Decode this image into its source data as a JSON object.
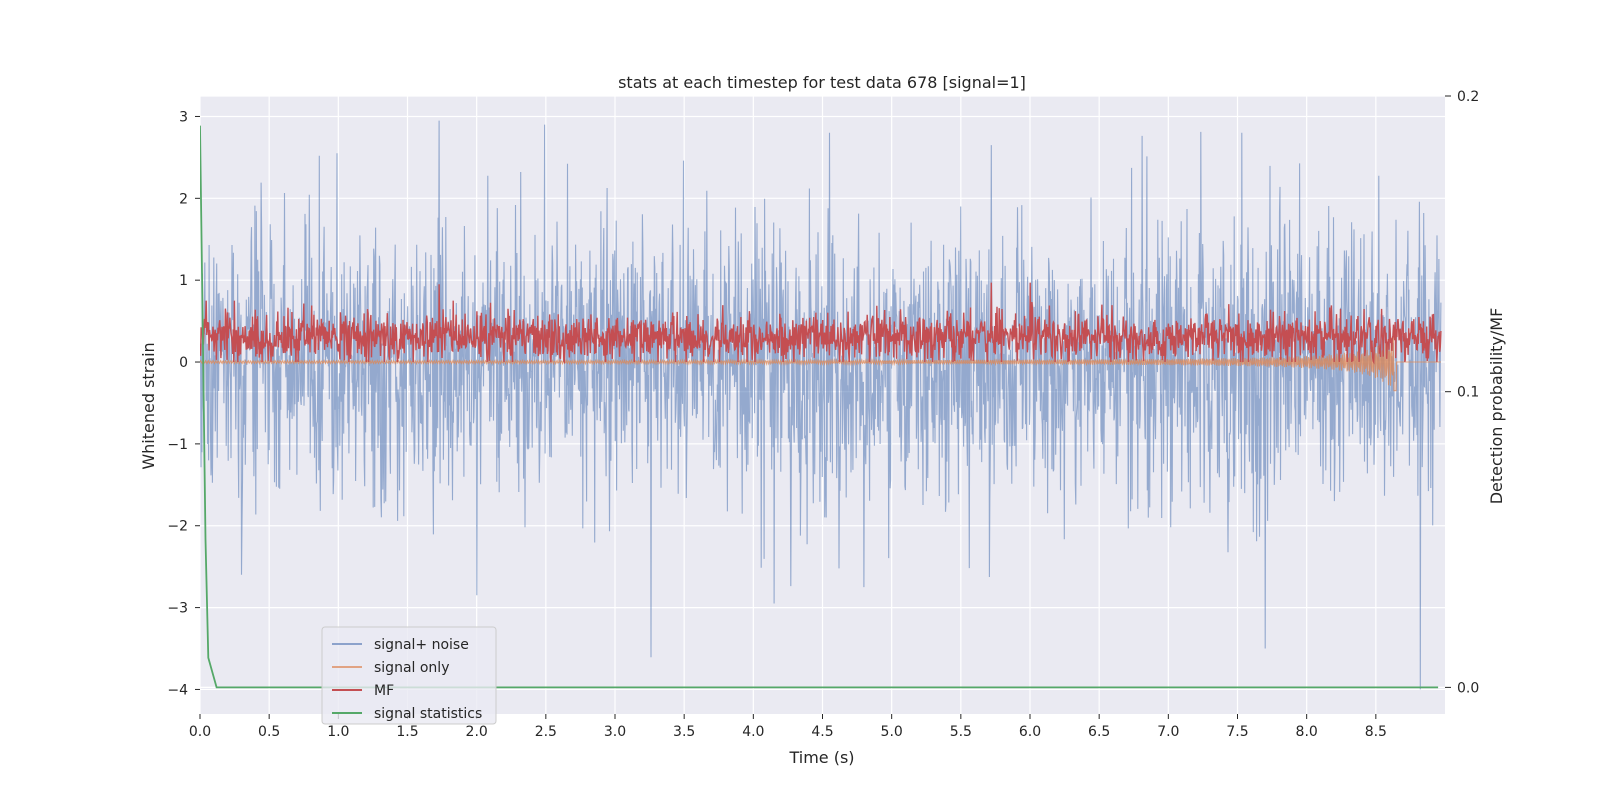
{
  "chart_data": {
    "type": "line",
    "title": "stats at each timestep for test data 678 [signal=1]",
    "xlabel": "Time (s)",
    "ylabel": "Whitened strain",
    "ylabel_right": "Detection probability/MF",
    "xlim": [
      0.0,
      9.0
    ],
    "ylim": [
      -4.3,
      3.25
    ],
    "ylim_right": [
      -0.009,
      0.2
    ],
    "x_ticks": [
      0.0,
      0.5,
      1.0,
      1.5,
      2.0,
      2.5,
      3.0,
      3.5,
      4.0,
      4.5,
      5.0,
      5.5,
      6.0,
      6.5,
      7.0,
      7.5,
      8.0,
      8.5
    ],
    "x_tick_labels": [
      "0.0",
      "0.5",
      "1.0",
      "1.5",
      "2.0",
      "2.5",
      "3.0",
      "3.5",
      "4.0",
      "4.5",
      "5.0",
      "5.5",
      "6.0",
      "6.5",
      "7.0",
      "7.5",
      "8.0",
      "8.5"
    ],
    "y_ticks": [
      -4,
      -3,
      -2,
      -1,
      0,
      1,
      2,
      3
    ],
    "y_tick_labels": [
      "−4",
      "−3",
      "−2",
      "−1",
      "0",
      "1",
      "2",
      "3"
    ],
    "y_ticks_right": [
      0.0,
      0.1,
      0.2
    ],
    "y_tick_labels_right": [
      "0.0",
      "0.1",
      "0.2"
    ],
    "grid": true,
    "legend_position": "lower-left",
    "series": [
      {
        "name": "signal+ noise",
        "color": "#4c72b0",
        "axis": "left",
        "kind": "noise",
        "center": 0.0,
        "amplitude_std": 0.85,
        "y_min": -4.0,
        "y_max": 2.95,
        "peaks": [
          [
            1.73,
            2.95
          ],
          [
            2.49,
            2.9
          ],
          [
            0.99,
            2.55
          ],
          [
            4.55,
            2.8
          ],
          [
            7.53,
            2.8
          ],
          [
            5.72,
            2.65
          ],
          [
            2.0,
            -2.85
          ],
          [
            4.15,
            -2.95
          ],
          [
            7.7,
            -3.5
          ],
          [
            8.82,
            -4.0
          ],
          [
            0.3,
            -2.6
          ],
          [
            4.8,
            -2.75
          ]
        ]
      },
      {
        "name": "signal only",
        "color": "#dd8452",
        "axis": "left",
        "kind": "chirp",
        "chirp_end_x": 8.65,
        "chirp_min": -0.35
      },
      {
        "name": "MF",
        "color": "#c44e52",
        "axis": "left",
        "kind": "band",
        "center": 0.3,
        "band_low": 0.0,
        "band_high": 0.75,
        "peaks": [
          [
            1.73,
            0.95
          ],
          [
            5.72,
            0.97
          ],
          [
            6.0,
            0.97
          ],
          [
            0.25,
            0.75
          ]
        ]
      },
      {
        "name": "signal statistics",
        "color": "#55a868",
        "axis": "right",
        "kind": "line",
        "x": [
          0.0,
          0.02,
          0.04,
          0.06,
          0.12,
          0.5,
          1.0,
          2.0,
          3.0,
          4.0,
          5.0,
          6.0,
          7.0,
          8.0,
          8.95
        ],
        "y": [
          0.19,
          0.12,
          0.05,
          0.01,
          0.0,
          0.0,
          0.0,
          0.0,
          0.0,
          0.0,
          0.0,
          0.0,
          0.0,
          0.0,
          0.0
        ]
      }
    ]
  }
}
